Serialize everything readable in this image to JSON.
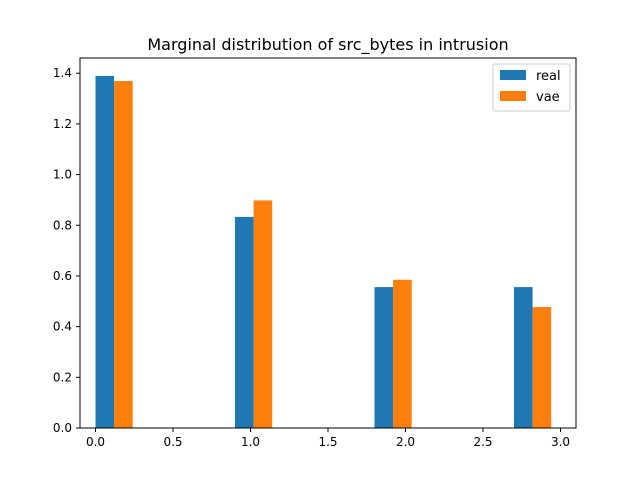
{
  "chart_data": {
    "type": "bar",
    "title": "Marginal distribution of src_bytes in intrusion",
    "xlabel": "",
    "ylabel": "",
    "xlim": [
      -0.1,
      3.1
    ],
    "ylim": [
      0,
      1.46
    ],
    "xticks": [
      0.0,
      0.5,
      1.0,
      1.5,
      2.0,
      2.5,
      3.0
    ],
    "xtick_labels": [
      "0.0",
      "0.5",
      "1.0",
      "1.5",
      "2.0",
      "2.5",
      "3.0"
    ],
    "yticks": [
      0.0,
      0.2,
      0.4,
      0.6,
      0.8,
      1.0,
      1.2,
      1.4
    ],
    "ytick_labels": [
      "0.0",
      "0.2",
      "0.4",
      "0.6",
      "0.8",
      "1.0",
      "1.2",
      "1.4"
    ],
    "bar_width": 0.12,
    "grid": false,
    "legend": {
      "position": "top-right"
    },
    "series": [
      {
        "name": "real",
        "color": "#1f77b4",
        "x": [
          0.0,
          0.9,
          1.8,
          2.7
        ],
        "values": [
          1.389,
          0.833,
          0.556,
          0.556
        ]
      },
      {
        "name": "vae",
        "color": "#ff7f0e",
        "x": [
          0.12,
          1.02,
          1.92,
          2.82
        ],
        "values": [
          1.369,
          0.898,
          0.585,
          0.477
        ]
      }
    ]
  }
}
